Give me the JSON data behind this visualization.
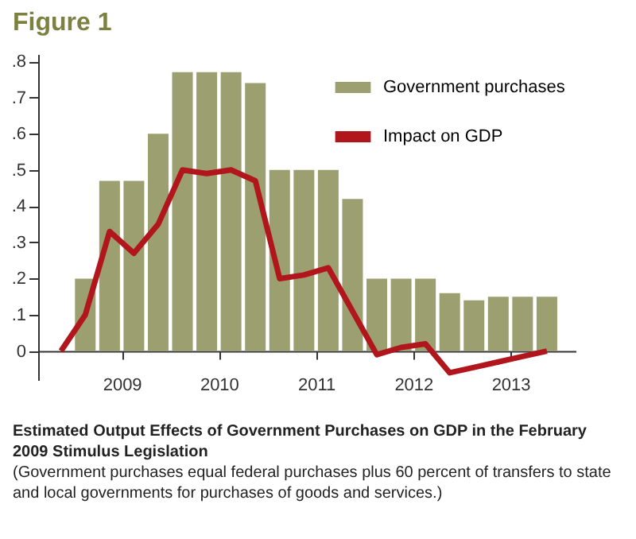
{
  "chart_data": {
    "type": "bar",
    "title": "Figure 1",
    "subtitle": "Estimated Output Effects of Government Purchases on GDP in the February 2009 Stimulus Legislation",
    "annotations": [
      "(Government purchases equal federal purchases plus 60 percent of transfers to state and local governments for purchases of goods and services.)"
    ],
    "series": [
      {
        "name": "Government purchases",
        "color": "#9c9f70",
        "x": [
          2008.625,
          2008.875,
          2009.125,
          2009.375,
          2009.625,
          2009.875,
          2010.125,
          2010.375,
          2010.625,
          2010.875,
          2011.125,
          2011.375,
          2011.625,
          2011.875,
          2012.125,
          2012.375,
          2012.625,
          2012.875,
          2013.125,
          2013.375
        ],
        "values": [
          0.2,
          0.47,
          0.47,
          0.6,
          0.77,
          0.77,
          0.77,
          0.74,
          0.5,
          0.5,
          0.5,
          0.42,
          0.2,
          0.2,
          0.2,
          0.16,
          0.14,
          0.15,
          0.15,
          0.15
        ]
      },
      {
        "name": "Impact on GDP",
        "type": "line",
        "color": "#b0161c",
        "x": [
          2008.375,
          2008.625,
          2008.875,
          2009.125,
          2009.375,
          2009.625,
          2009.875,
          2010.125,
          2010.375,
          2010.625,
          2010.875,
          2011.125,
          2011.375,
          2011.625,
          2011.875,
          2012.125,
          2012.375,
          2012.625,
          2012.875,
          2013.125,
          2013.375
        ],
        "values": [
          0,
          0.1,
          0.33,
          0.27,
          0.35,
          0.5,
          0.49,
          0.5,
          0.47,
          0.2,
          0.21,
          0.23,
          0.11,
          -0.01,
          0.01,
          0.02,
          -0.06,
          -0.045,
          -0.03,
          -0.015,
          0
        ]
      }
    ],
    "xlim": [
      2008.14,
      2013.67
    ],
    "xticks": [
      2009,
      2010,
      2011,
      2012,
      2013
    ],
    "ylim": [
      -0.08,
      0.82
    ],
    "yticks": [
      {
        "value": 0,
        "label": "0"
      },
      {
        "value": 0.1,
        "label": ".1"
      },
      {
        "value": 0.2,
        "label": ".2"
      },
      {
        "value": 0.3,
        "label": ".3"
      },
      {
        "value": 0.4,
        "label": ".4"
      },
      {
        "value": 0.5,
        "label": ".5"
      },
      {
        "value": 0.6,
        "label": ".6"
      },
      {
        "value": 0.7,
        "label": ".7"
      },
      {
        "value": 0.8,
        "label": ".8"
      }
    ],
    "grid": false,
    "legend": "top right"
  }
}
